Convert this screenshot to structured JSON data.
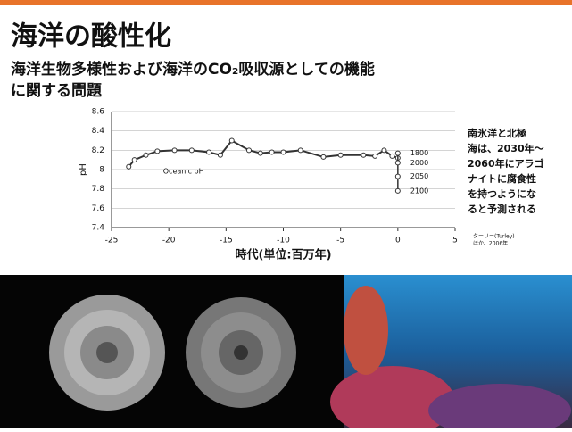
{
  "title": "海洋の酸性化",
  "subtitle": [
    "海洋生物多様性および海洋のCO₂吸収源としての機能",
    "に関する問題"
  ],
  "note": [
    "南氷洋と北極",
    "海は、2030年～",
    "2060年にアラゴ",
    "ナイトに腐食性",
    "を持つようにな",
    "ると予測される"
  ],
  "citation": [
    "ターリー(Turley)",
    "ほか、2006年"
  ],
  "chart_data": {
    "type": "line",
    "x_label": "時代(単位:百万年)",
    "y_label": "pH",
    "xlim": [
      -25,
      5
    ],
    "xticks": [
      -25,
      -20,
      -15,
      -10,
      -5,
      0,
      5
    ],
    "ylim": [
      7.4,
      8.6
    ],
    "yticks": [
      7.4,
      7.6,
      7.8,
      8,
      8.2,
      8.4,
      8.6
    ],
    "grid": true,
    "series": [
      {
        "name": "Oceanic pH",
        "color": "#333333",
        "x": [
          -23.5,
          -23,
          -22,
          -21,
          -19.5,
          -18,
          -16.5,
          -15.5,
          -14.5,
          -13,
          -12,
          -11,
          -10,
          -8.5,
          -6.5,
          -5,
          -3,
          -2,
          -1.2,
          -0.5,
          0
        ],
        "values": [
          8.03,
          8.1,
          8.15,
          8.19,
          8.2,
          8.2,
          8.18,
          8.15,
          8.3,
          8.2,
          8.17,
          8.18,
          8.18,
          8.2,
          8.13,
          8.15,
          8.15,
          8.14,
          8.2,
          8.14,
          8.12
        ]
      }
    ],
    "projection": {
      "x": [
        0,
        0,
        0,
        0
      ],
      "values": [
        8.17,
        8.07,
        7.93,
        7.78
      ],
      "labels": [
        "1800",
        "2000",
        "2050",
        "2100"
      ]
    }
  }
}
